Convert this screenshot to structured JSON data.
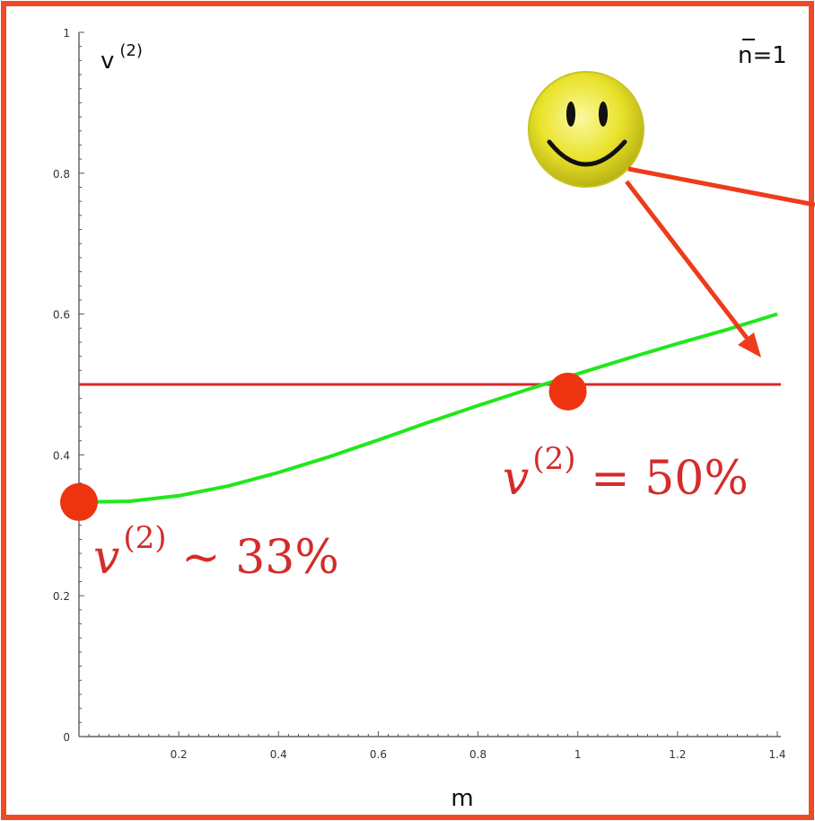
{
  "chart_data": {
    "type": "line",
    "xlabel": "m",
    "ylabel_base": "v",
    "ylabel_sup": "(2)",
    "corner_label": "n=1",
    "xlim": [
      0,
      1.4
    ],
    "ylim": [
      0,
      1
    ],
    "x_ticks": [
      "0.2",
      "0.4",
      "0.6",
      "0.8",
      "1",
      "1.2",
      "1.4"
    ],
    "y_ticks": [
      "0",
      "0.2",
      "0.4",
      "0.6",
      "0.8",
      "1"
    ],
    "series": [
      {
        "color": "#22e61c",
        "x": [
          0,
          0.1,
          0.2,
          0.3,
          0.4,
          0.5,
          0.6,
          0.7,
          0.8,
          0.9,
          1.0,
          1.1,
          1.2,
          1.3,
          1.4
        ],
        "y": [
          0.333,
          0.334,
          0.342,
          0.356,
          0.375,
          0.397,
          0.421,
          0.446,
          0.47,
          0.493,
          0.515,
          0.537,
          0.558,
          0.578,
          0.6
        ]
      }
    ],
    "reference_line": {
      "y": 0.5,
      "color": "#d52b2b"
    },
    "points": [
      {
        "x": 0.0,
        "y": 0.333,
        "color": "#ee3311"
      },
      {
        "x": 0.98,
        "y": 0.49,
        "color": "#ee3311"
      }
    ],
    "annotations": [
      {
        "base": "v",
        "sup": "(2)",
        "rest": " = 50%"
      },
      {
        "base": "v",
        "sup": "(2)",
        "rest": " ~ 33%"
      }
    ],
    "icon": "smiley-face-icon",
    "frame_color": "#ef4a26"
  }
}
